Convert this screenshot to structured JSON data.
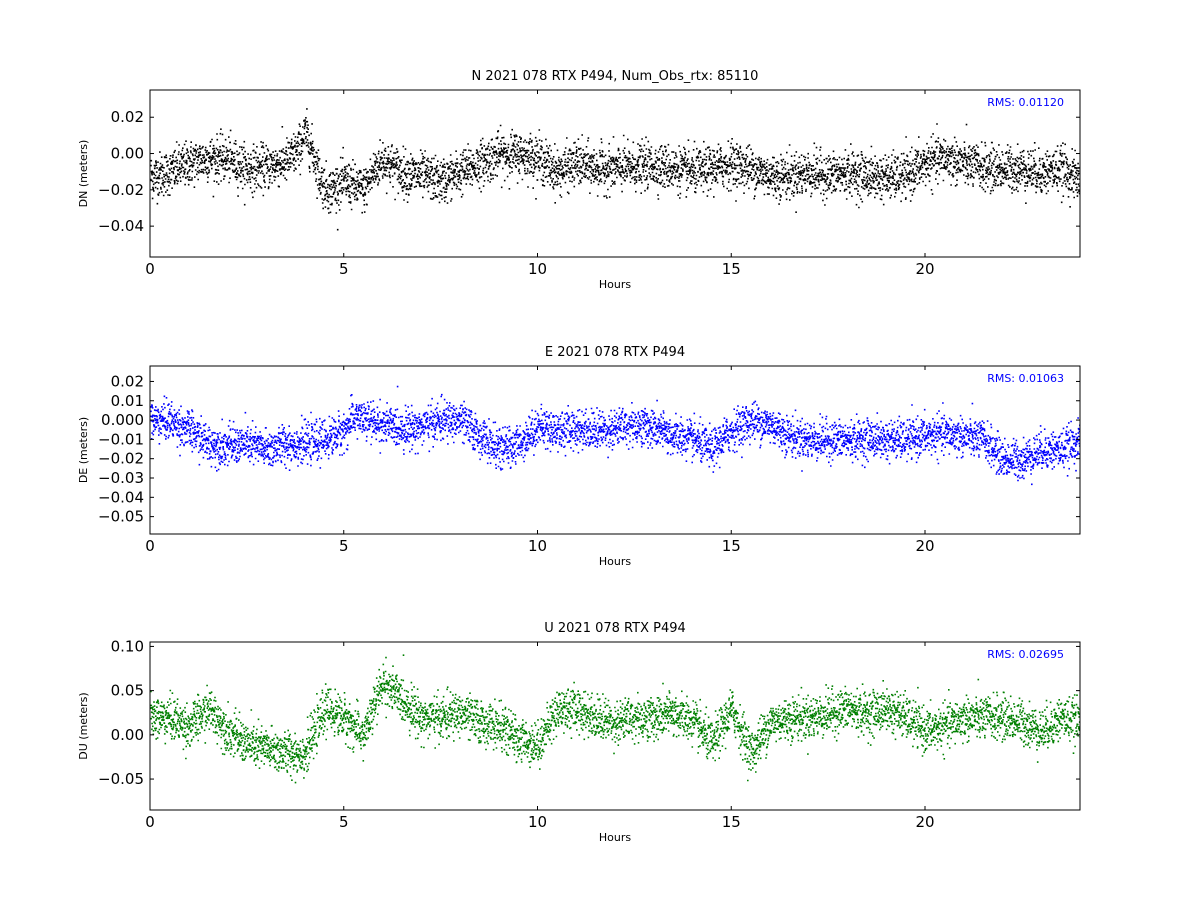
{
  "chart_data": [
    {
      "type": "scatter",
      "title": "N 2021 078 RTX  P494, Num_Obs_rtx: 85110",
      "xlabel": "Hours",
      "ylabel": "DN (meters)",
      "xlim": [
        0,
        24
      ],
      "ylim": [
        -0.057,
        0.035
      ],
      "xticks": [
        0,
        5,
        10,
        15,
        20
      ],
      "xtick_labels": [
        "0",
        "5",
        "10",
        "15",
        "20"
      ],
      "yticks": [
        0.02,
        0.0,
        -0.02,
        -0.04
      ],
      "ytick_labels": [
        "0.02",
        "0.00",
        "−0.02",
        "−0.04"
      ],
      "rms_label": "RMS:  0.01120",
      "color": "#000000",
      "series": [
        {
          "x": [
            0,
            0.5,
            1,
            1.5,
            2,
            2.5,
            3,
            3.5,
            3.8,
            4,
            4.2,
            4.4,
            4.6,
            5,
            5.5,
            5.8,
            6,
            6.5,
            7,
            7.5,
            8,
            8.5,
            9,
            9.5,
            10,
            10.5,
            11,
            11.5,
            12,
            12.5,
            13,
            13.5,
            14,
            14.5,
            15,
            15.5,
            16,
            16.5,
            17,
            17.5,
            18,
            18.5,
            19,
            19.5,
            20,
            20.5,
            21,
            21.5,
            22,
            22.5,
            23,
            23.5,
            24
          ],
          "y": [
            -0.012,
            -0.01,
            -0.005,
            -0.002,
            -0.003,
            -0.008,
            -0.007,
            -0.004,
            0.002,
            0.012,
            0.0,
            -0.015,
            -0.02,
            -0.015,
            -0.02,
            -0.008,
            -0.003,
            -0.01,
            -0.012,
            -0.015,
            -0.01,
            -0.005,
            0.0,
            0.0,
            -0.002,
            -0.01,
            -0.005,
            -0.008,
            -0.008,
            -0.007,
            -0.006,
            -0.008,
            -0.01,
            -0.008,
            -0.005,
            -0.008,
            -0.012,
            -0.012,
            -0.01,
            -0.012,
            -0.01,
            -0.012,
            -0.013,
            -0.012,
            -0.005,
            -0.002,
            -0.005,
            -0.008,
            -0.008,
            -0.008,
            -0.01,
            -0.008,
            -0.015
          ],
          "spread": 0.011
        }
      ]
    },
    {
      "type": "scatter",
      "title": "E 2021 078 RTX  P494",
      "xlabel": "Hours",
      "ylabel": "DE (meters)",
      "xlim": [
        0,
        24
      ],
      "ylim": [
        -0.059,
        0.028
      ],
      "xticks": [
        0,
        5,
        10,
        15,
        20
      ],
      "xtick_labels": [
        "0",
        "5",
        "10",
        "15",
        "20"
      ],
      "yticks": [
        0.02,
        0.01,
        0.0,
        -0.01,
        -0.02,
        -0.03,
        -0.04,
        -0.05
      ],
      "ytick_labels": [
        "0.02",
        "0.01",
        "0.000",
        "−0.01",
        "−0.02",
        "−0.03",
        "−0.04",
        "−0.05"
      ],
      "rms_label": "RMS:  0.01063",
      "color": "#0000ff",
      "series": [
        {
          "x": [
            0,
            0.5,
            1,
            1.5,
            2,
            2.5,
            3,
            3.5,
            4,
            4.5,
            5,
            5.3,
            5.5,
            6,
            6.5,
            7,
            7.5,
            8,
            8.5,
            9,
            9.5,
            10,
            10.5,
            11,
            11.5,
            12,
            12.5,
            13,
            13.5,
            14,
            14.5,
            15,
            15.5,
            16,
            16.5,
            17,
            17.5,
            18,
            18.5,
            19,
            19.5,
            20,
            20.5,
            21,
            21.5,
            22,
            22.5,
            23,
            23.5,
            24
          ],
          "y": [
            0.0,
            0.0,
            -0.005,
            -0.012,
            -0.013,
            -0.012,
            -0.015,
            -0.012,
            -0.012,
            -0.01,
            -0.005,
            0.003,
            0.0,
            -0.002,
            -0.004,
            -0.003,
            0.0,
            0.0,
            -0.008,
            -0.015,
            -0.012,
            -0.003,
            -0.005,
            -0.004,
            -0.005,
            -0.004,
            -0.002,
            -0.004,
            -0.008,
            -0.01,
            -0.015,
            -0.005,
            0.0,
            -0.002,
            -0.008,
            -0.01,
            -0.01,
            -0.01,
            -0.009,
            -0.01,
            -0.01,
            -0.008,
            -0.007,
            -0.008,
            -0.01,
            -0.02,
            -0.02,
            -0.015,
            -0.015,
            -0.01
          ],
          "spread": 0.009
        }
      ]
    },
    {
      "type": "scatter",
      "title": "U 2021 078 RTX  P494",
      "xlabel": "Hours",
      "ylabel": "DU (meters)",
      "xlim": [
        0,
        24
      ],
      "ylim": [
        -0.085,
        0.105
      ],
      "xticks": [
        0,
        5,
        10,
        15,
        20
      ],
      "xtick_labels": [
        "0",
        "5",
        "10",
        "15",
        "20"
      ],
      "yticks": [
        0.1,
        0.05,
        0.0,
        -0.05
      ],
      "ytick_labels": [
        "0.10",
        "0.05",
        "0.00",
        "−0.05"
      ],
      "rms_label": "RMS:  0.02695",
      "color": "#008000",
      "series": [
        {
          "x": [
            0,
            0.5,
            1,
            1.5,
            2,
            2.5,
            3,
            3.5,
            4,
            4.5,
            5,
            5.5,
            6,
            6.5,
            7,
            7.5,
            8,
            8.5,
            9,
            9.5,
            10,
            10.5,
            11,
            11.5,
            12,
            12.5,
            13,
            13.5,
            14,
            14.5,
            15,
            15.5,
            16,
            16.5,
            17,
            17.5,
            18,
            18.5,
            19,
            19.5,
            20,
            20.5,
            21,
            21.5,
            22,
            22.5,
            23,
            23.5,
            24
          ],
          "y": [
            0.02,
            0.02,
            0.01,
            0.03,
            0.005,
            -0.01,
            -0.015,
            -0.02,
            -0.02,
            0.03,
            0.02,
            0.0,
            0.06,
            0.04,
            0.02,
            0.02,
            0.025,
            0.015,
            0.01,
            -0.005,
            -0.01,
            0.03,
            0.03,
            0.02,
            0.015,
            0.02,
            0.02,
            0.025,
            0.015,
            -0.01,
            0.03,
            -0.02,
            0.015,
            0.02,
            0.02,
            0.025,
            0.03,
            0.025,
            0.03,
            0.02,
            0.005,
            0.01,
            0.02,
            0.02,
            0.02,
            0.015,
            0.005,
            0.02,
            0.015
          ],
          "spread": 0.022
        }
      ]
    }
  ]
}
